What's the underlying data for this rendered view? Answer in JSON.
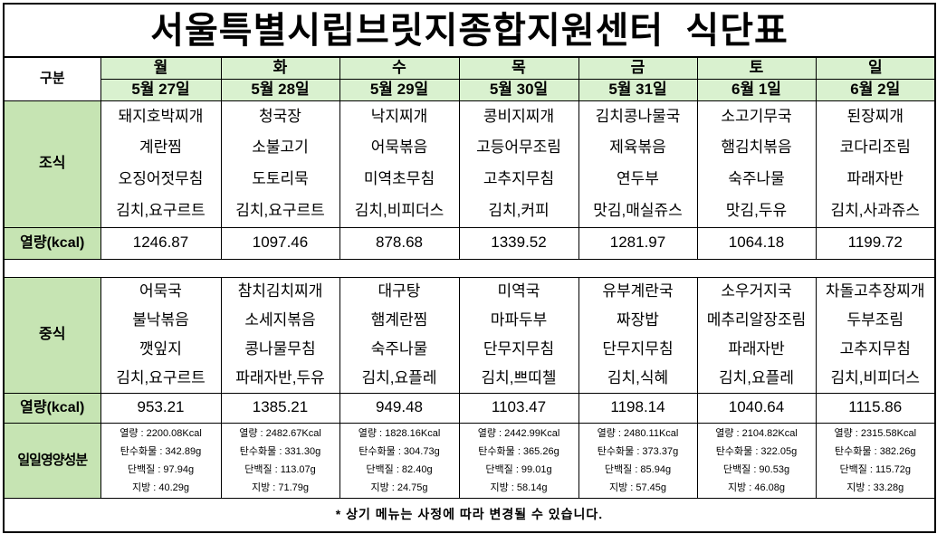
{
  "title": "서울특별시립브릿지종합지원센터  식단표",
  "header": {
    "label": "구분",
    "days": [
      "월",
      "화",
      "수",
      "목",
      "금",
      "토",
      "일"
    ],
    "dates": [
      "5월 27일",
      "5월 28일",
      "5월 29일",
      "5월 30일",
      "5월 31일",
      "6월 1일",
      "6월 2일"
    ]
  },
  "breakfast": {
    "label": "조식",
    "rows": [
      [
        "돼지호박찌개",
        "청국장",
        "낙지찌개",
        "콩비지찌개",
        "김치콩나물국",
        "소고기무국",
        "된장찌개"
      ],
      [
        "계란찜",
        "소불고기",
        "어묵볶음",
        "고등어무조림",
        "제육볶음",
        "햄김치볶음",
        "코다리조림"
      ],
      [
        "오징어젓무침",
        "도토리묵",
        "미역초무침",
        "고추지무침",
        "연두부",
        "숙주나물",
        "파래자반"
      ],
      [
        "김치,요구르트",
        "김치,요구르트",
        "김치,비피더스",
        "김치,커피",
        "맛김,매실쥬스",
        "맛김,두유",
        "김치,사과쥬스"
      ]
    ],
    "calorie_label": "열량(kcal)",
    "calories": [
      "1246.87",
      "1097.46",
      "878.68",
      "1339.52",
      "1281.97",
      "1064.18",
      "1199.72"
    ]
  },
  "lunch": {
    "label": "중식",
    "rows": [
      [
        "어묵국",
        "참치김치찌개",
        "대구탕",
        "미역국",
        "유부계란국",
        "소우거지국",
        "차돌고추장찌개"
      ],
      [
        "불낙볶음",
        "소세지볶음",
        "햄계란찜",
        "마파두부",
        "짜장밥",
        "메추리알장조림",
        "두부조림"
      ],
      [
        "깻잎지",
        "콩나물무침",
        "숙주나물",
        "단무지무침",
        "단무지무침",
        "파래자반",
        "고추지무침"
      ],
      [
        "김치,요구르트",
        "파래자반,두유",
        "김치,요플레",
        "김치,쁘띠첼",
        "김치,식혜",
        "김치,요플레",
        "김치,비피더스"
      ]
    ],
    "calorie_label": "열량(kcal)",
    "calories": [
      "953.21",
      "1385.21",
      "949.48",
      "1103.47",
      "1198.14",
      "1040.64",
      "1115.86"
    ]
  },
  "daily_nutrition": {
    "label": "일일영양성분",
    "columns": [
      [
        "열량 : 2200.08Kcal",
        "탄수화물 : 342.89g",
        "단백질 : 97.94g",
        "지방 : 40.29g"
      ],
      [
        "열량 : 2482.67Kcal",
        "탄수화물 : 331.30g",
        "단백질 : 113.07g",
        "지방 : 71.79g"
      ],
      [
        "열량 : 1828.16Kcal",
        "탄수화물 : 304.73g",
        "단백질 : 82.40g",
        "지방 : 24.75g"
      ],
      [
        "열량 : 2442.99Kcal",
        "탄수화물 : 365.26g",
        "단백질 : 99.01g",
        "지방 : 58.14g"
      ],
      [
        "열량 : 2480.11Kcal",
        "탄수화물 : 373.37g",
        "단백질 : 85.94g",
        "지방 : 57.45g"
      ],
      [
        "열량 : 2104.82Kcal",
        "탄수화물 : 322.05g",
        "단백질 : 90.53g",
        "지방 : 46.08g"
      ],
      [
        "열량 : 2315.58Kcal",
        "탄수화물 : 382.26g",
        "단백질 : 115.72g",
        "지방 : 33.28g"
      ]
    ]
  },
  "footer_note": "* 상기 메뉴는 사정에 따라 변경될 수 있습니다.",
  "colors": {
    "header_green": "#d9f1cf",
    "label_green": "#c6e4b3",
    "border": "#000000"
  }
}
